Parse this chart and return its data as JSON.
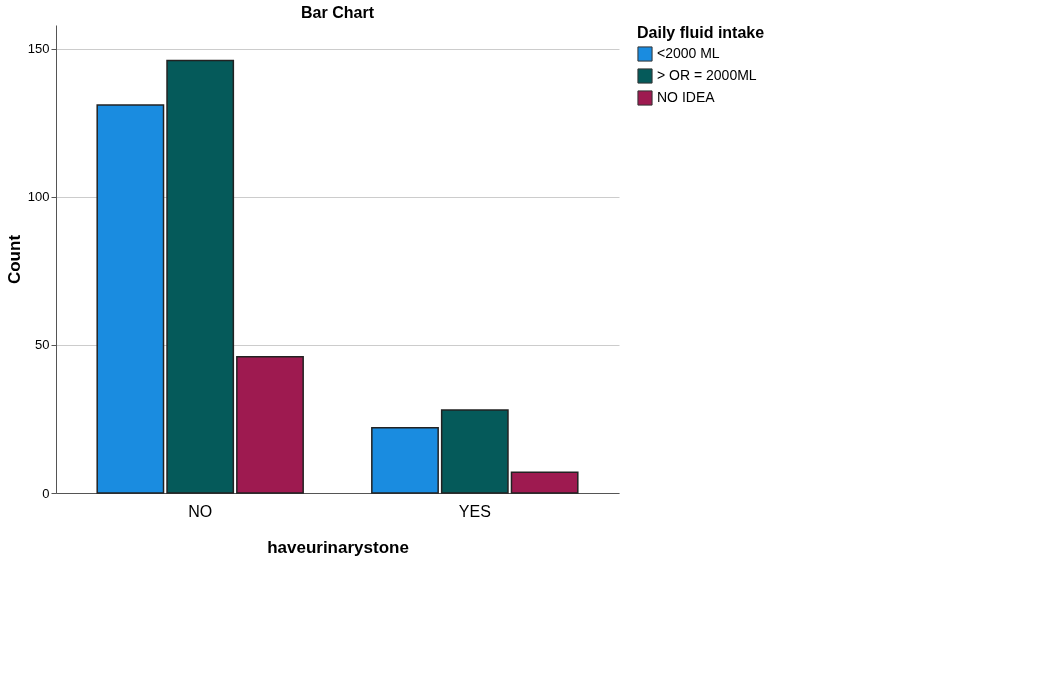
{
  "chart_data": {
    "type": "bar",
    "title": "Bar Chart",
    "xlabel": "haveurinarystone",
    "ylabel": "Count",
    "legend_title": "Daily fluid intake",
    "categories": [
      "NO",
      "YES"
    ],
    "series": [
      {
        "name": "<2000 ML",
        "color": "#1a8ce0",
        "values": [
          131,
          22
        ]
      },
      {
        "name": "> OR = 2000ML",
        "color": "#055a5a",
        "values": [
          146,
          28
        ]
      },
      {
        "name": "NO IDEA",
        "color": "#9e1a50",
        "values": [
          46,
          7
        ]
      }
    ],
    "ylim": [
      0,
      158
    ],
    "yticks": [
      0,
      50,
      100,
      150
    ],
    "grid": "y",
    "legend": "top right"
  }
}
